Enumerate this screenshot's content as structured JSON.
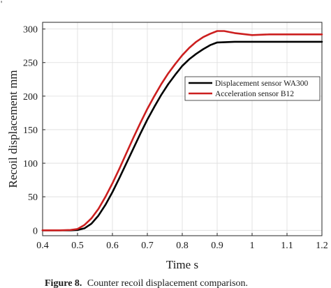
{
  "chart_data": {
    "type": "line",
    "title": "",
    "xlabel": "Time s",
    "ylabel": "Recoil displacement  mm",
    "xlim": [
      0.4,
      1.2
    ],
    "ylim": [
      -8,
      310
    ],
    "xticks": [
      0.4,
      0.5,
      0.6,
      0.7,
      0.8,
      0.9,
      1,
      1.1,
      1.2
    ],
    "xtick_labels": [
      "0.4",
      "0.5",
      "0.6",
      "0.7",
      "0.8",
      "0.9",
      "1",
      "1.1",
      "1.2"
    ],
    "yticks": [
      0,
      50,
      100,
      150,
      200,
      250,
      300
    ],
    "ytick_labels": [
      "0",
      "50",
      "100",
      "150",
      "200",
      "250",
      "300"
    ],
    "grid": true,
    "legend_position": "right",
    "series": [
      {
        "name": "Displacement sensor WA300",
        "color": "#000000",
        "x": [
          0.4,
          0.45,
          0.48,
          0.5,
          0.52,
          0.54,
          0.56,
          0.58,
          0.6,
          0.62,
          0.64,
          0.66,
          0.68,
          0.7,
          0.72,
          0.74,
          0.76,
          0.78,
          0.8,
          0.82,
          0.84,
          0.86,
          0.88,
          0.9,
          0.95,
          1.0,
          1.1,
          1.2
        ],
        "y": [
          0,
          0,
          0,
          0.5,
          3,
          10,
          22,
          38,
          57,
          78,
          100,
          122,
          144,
          165,
          184,
          202,
          218,
          232,
          245,
          255,
          263,
          270,
          276,
          280,
          281,
          281,
          281,
          281
        ]
      },
      {
        "name": "Acceleration sensor B12",
        "color": "#cc1f1f",
        "x": [
          0.4,
          0.45,
          0.48,
          0.5,
          0.52,
          0.54,
          0.56,
          0.58,
          0.6,
          0.62,
          0.64,
          0.66,
          0.68,
          0.7,
          0.72,
          0.74,
          0.76,
          0.78,
          0.8,
          0.82,
          0.84,
          0.86,
          0.88,
          0.9,
          0.92,
          0.95,
          1.0,
          1.05,
          1.1,
          1.2
        ],
        "y": [
          0,
          0,
          0.5,
          2,
          8,
          18,
          32,
          50,
          70,
          92,
          115,
          138,
          160,
          181,
          200,
          218,
          234,
          248,
          261,
          272,
          281,
          288,
          293,
          297,
          297,
          294,
          291,
          292,
          292,
          292
        ]
      }
    ]
  },
  "caption": {
    "label": "Figure 8.",
    "text": "Counter recoil displacement comparison."
  }
}
